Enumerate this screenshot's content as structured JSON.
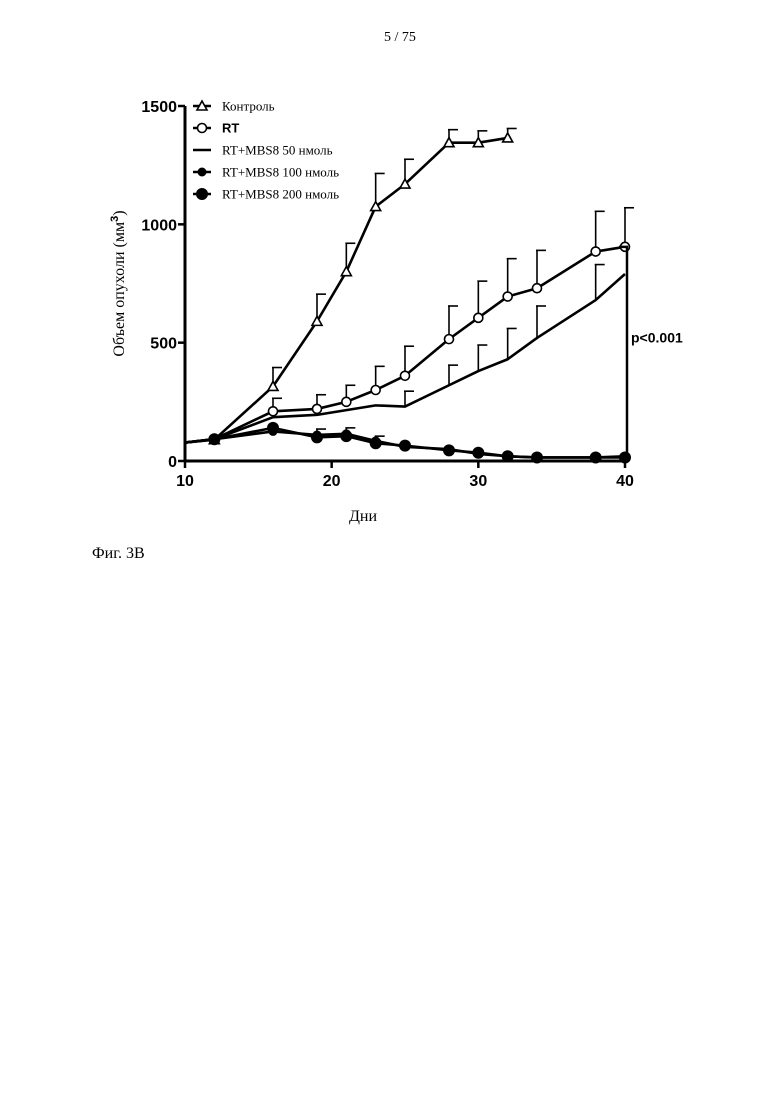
{
  "page": {
    "page_number": "5 / 75",
    "figure_caption": "Фиг. 3B"
  },
  "chart_data": {
    "type": "line",
    "xlabel": "Дни",
    "ylabel": "Объем опухоли (мм",
    "ylabel_superscript": "3",
    "ylabel_close": ")",
    "xlim": [
      10,
      40
    ],
    "ylim": [
      0,
      1500
    ],
    "x_ticks": [
      10,
      20,
      30,
      40
    ],
    "y_ticks": [
      0,
      500,
      1000,
      1500
    ],
    "grid": false,
    "legend_position": "top-left",
    "annotation": "p<0.001",
    "annotation_bracket_y": [
      0,
      905
    ],
    "series": [
      {
        "name": "Контроль",
        "marker": "triangle-open",
        "x": [
          8,
          12,
          16,
          19,
          21,
          23,
          25,
          28,
          30,
          32
        ],
        "y": [
          78,
          90,
          315,
          590,
          800,
          1075,
          1170,
          1345,
          1345,
          1365
        ],
        "err": [
          0,
          0,
          80,
          115,
          120,
          140,
          105,
          55,
          50,
          40
        ]
      },
      {
        "name": "RT",
        "marker": "circle-open",
        "x": [
          8,
          12,
          16,
          19,
          21,
          23,
          25,
          28,
          30,
          32,
          34,
          38,
          40
        ],
        "y": [
          78,
          92,
          210,
          220,
          250,
          300,
          360,
          515,
          605,
          695,
          730,
          885,
          905
        ],
        "err": [
          0,
          0,
          55,
          60,
          70,
          100,
          125,
          140,
          155,
          160,
          160,
          170,
          165
        ]
      },
      {
        "name": "RT+MBS8 50 нмоль",
        "marker": "none",
        "x": [
          8,
          12,
          16,
          19,
          21,
          23,
          25,
          28,
          30,
          32,
          34,
          38,
          40
        ],
        "y": [
          78,
          92,
          185,
          195,
          215,
          235,
          230,
          320,
          380,
          430,
          520,
          680,
          790
        ],
        "err": [
          0,
          0,
          0,
          0,
          0,
          0,
          65,
          85,
          110,
          130,
          135,
          150,
          0
        ]
      },
      {
        "name": "RT+MBS8 100 нмоль",
        "marker": "circle-small",
        "x": [
          8,
          12,
          16,
          19,
          21,
          23,
          25,
          28,
          30,
          32,
          34,
          38,
          40
        ],
        "y": [
          78,
          92,
          125,
          110,
          115,
          85,
          60,
          50,
          30,
          20,
          15,
          15,
          20
        ],
        "err": [
          0,
          0,
          0,
          25,
          25,
          20,
          0,
          0,
          0,
          0,
          0,
          0,
          0
        ]
      },
      {
        "name": "RT+MBS8 200 нмоль",
        "marker": "circle-large",
        "x": [
          8,
          12,
          16,
          19,
          21,
          23,
          25,
          28,
          30,
          32,
          34,
          38,
          40
        ],
        "y": [
          78,
          92,
          140,
          100,
          105,
          75,
          65,
          45,
          35,
          20,
          15,
          15,
          15
        ],
        "err": [
          0,
          0,
          0,
          0,
          0,
          0,
          0,
          0,
          0,
          0,
          0,
          0,
          0
        ]
      }
    ]
  }
}
